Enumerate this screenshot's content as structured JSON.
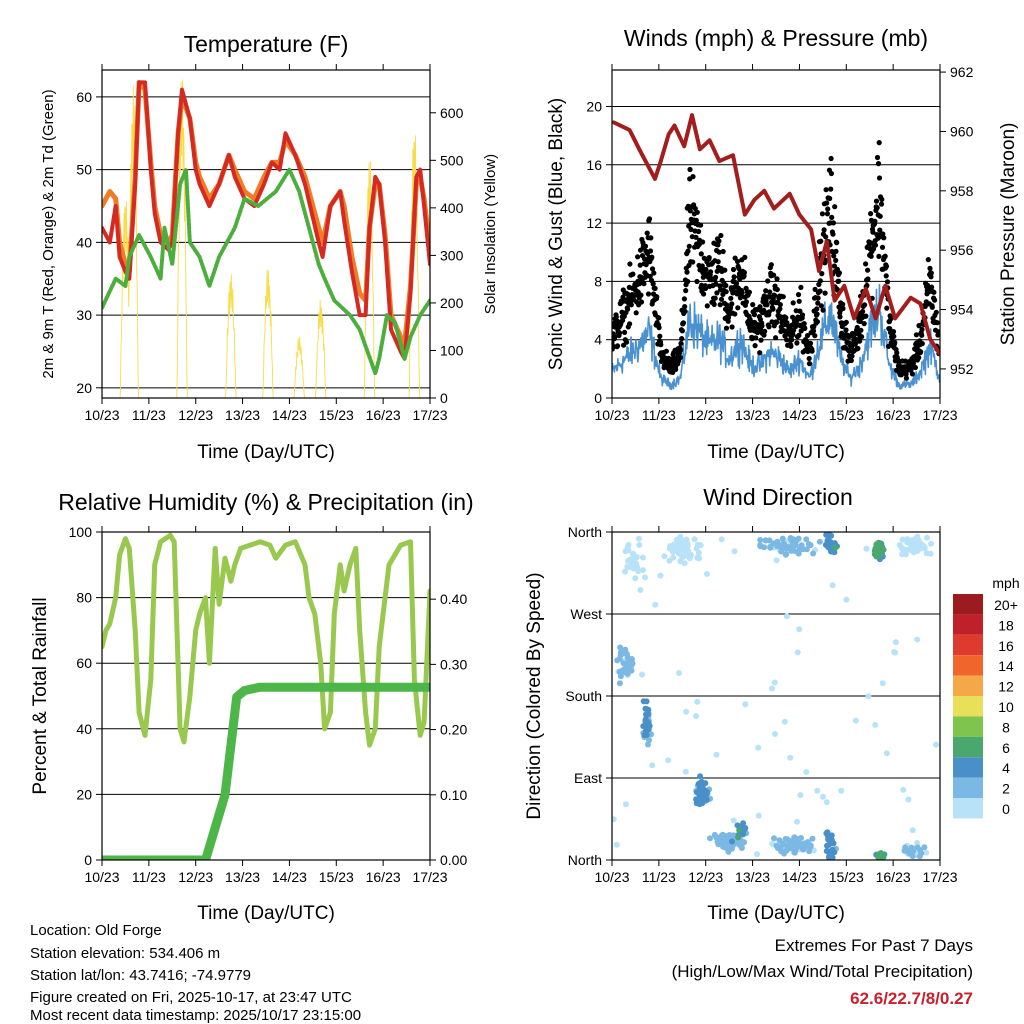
{
  "info": {
    "location": "Location: Old Forge",
    "elevation": "Station elevation: 534.406 m",
    "latlon": "Station lat/lon: 43.7416; -74.9779",
    "created": "Figure created on Fri, 2025-10-17, at 23:47 UTC",
    "timestamp": "Most recent data timestamp: 2025/10/17 23:15:00"
  },
  "extremes": {
    "title": "Extremes For Past 7 Days",
    "subtitle": "(High/Low/Max Wind/Total Precipitation)",
    "values": "62.6/22.7/8/0.27",
    "color": "#c8202c"
  },
  "chart_data": [
    {
      "id": "temperature",
      "type": "line",
      "title": "Temperature (F)",
      "xlabel": "Time (Day/UTC)",
      "ylabel": "2m & 9m T (Red, Orange) & 2m Td (Green)",
      "y2label": "Solar Insolation (Yellow)",
      "x_tick_labels": [
        "10/23",
        "11/23",
        "12/23",
        "13/23",
        "14/23",
        "15/23",
        "16/23",
        "17/23"
      ],
      "xlim_hours": [
        0,
        168
      ],
      "ylim": [
        18.6,
        63.7
      ],
      "yticks": [
        20,
        30,
        40,
        50,
        60
      ],
      "y2lim": [
        0,
        690
      ],
      "y2ticks": [
        0,
        100,
        200,
        300,
        400,
        500,
        600
      ],
      "grid": true,
      "series": [
        {
          "name": "2m T",
          "color": "#d42a22",
          "hours": [
            0,
            4,
            7,
            9,
            12,
            14,
            17,
            19,
            22,
            25,
            27,
            30,
            34,
            36,
            39,
            41,
            45,
            48,
            50,
            55,
            60,
            65,
            68,
            73,
            78,
            83,
            87,
            91,
            94,
            99,
            104,
            111,
            113,
            117,
            122,
            124,
            128,
            132,
            135,
            137,
            140,
            142,
            145,
            148,
            153,
            155,
            158,
            161,
            163,
            165,
            168
          ],
          "values": [
            42,
            40,
            45,
            38,
            36,
            35,
            48,
            62,
            62,
            50,
            44,
            40,
            39,
            40,
            55,
            61,
            57,
            50,
            48,
            45,
            48,
            52,
            49,
            46,
            45,
            48,
            51,
            50,
            55,
            52,
            48,
            40,
            38,
            45,
            47,
            43,
            36,
            30,
            30,
            42,
            49,
            48,
            40,
            28,
            25,
            24,
            33,
            49,
            50,
            45,
            37
          ]
        },
        {
          "name": "9m T",
          "color": "#f07c28",
          "hours": [
            0,
            4,
            7,
            9,
            12,
            14,
            17,
            19,
            22,
            25,
            27,
            30,
            34,
            36,
            39,
            41,
            45,
            48,
            50,
            55,
            60,
            65,
            68,
            73,
            78,
            83,
            87,
            91,
            94,
            99,
            104,
            111,
            113,
            117,
            122,
            124,
            128,
            132,
            135,
            137,
            140,
            142,
            145,
            148,
            153,
            155,
            158,
            161,
            163,
            165,
            168
          ],
          "values": [
            45,
            47,
            46,
            40,
            37,
            36,
            49,
            62,
            61,
            51,
            45,
            41,
            40,
            41,
            55,
            60,
            57,
            51,
            49,
            46,
            48,
            52,
            50,
            47,
            46,
            49,
            51,
            51,
            54,
            52,
            49,
            42,
            40,
            45,
            47,
            45,
            38,
            33,
            32,
            42,
            48,
            48,
            41,
            30,
            27,
            26,
            34,
            48,
            49,
            46,
            39
          ]
        },
        {
          "name": "2m Td",
          "color": "#4cae3c",
          "hours": [
            0,
            7,
            12,
            14,
            19,
            25,
            30,
            32,
            36,
            40,
            43,
            45,
            50,
            55,
            60,
            68,
            73,
            80,
            89,
            96,
            101,
            106,
            111,
            114,
            119,
            127,
            132,
            136,
            140,
            142,
            146,
            150,
            155,
            158,
            163,
            168
          ],
          "values": [
            31,
            35,
            34,
            38,
            41,
            38,
            35,
            42,
            37,
            48,
            50,
            40,
            38,
            34,
            38,
            42,
            46,
            45,
            47,
            50,
            47,
            42,
            37,
            35,
            32,
            30,
            28,
            25,
            22,
            24,
            30,
            29,
            24,
            27,
            30,
            32
          ]
        },
        {
          "name": "Solar Insolation",
          "axis": "y2",
          "color": "#f8dc48",
          "peak_hours": [
            12,
            16,
            41,
            66,
            85,
            101,
            112,
            137,
            160
          ],
          "peak_values": [
            440,
            670,
            690,
            270,
            280,
            130,
            210,
            520,
            590
          ]
        }
      ]
    },
    {
      "id": "winds",
      "type": "scatter+line",
      "title": "Winds (mph) & Pressure (mb)",
      "xlabel": "Time (Day/UTC)",
      "ylabel": "Sonic Wind & Gust (Blue, Black)",
      "y2label": "Station Pressure (Maroon)",
      "x_tick_labels": [
        "10/23",
        "11/23",
        "12/23",
        "13/23",
        "14/23",
        "15/23",
        "16/23",
        "17/23"
      ],
      "xlim_hours": [
        0,
        168
      ],
      "ylim": [
        0,
        22.5
      ],
      "yticks": [
        0,
        4,
        8,
        12,
        16,
        20
      ],
      "y2lim": [
        951.02,
        962.07
      ],
      "y2ticks": [
        952,
        954,
        956,
        958,
        960,
        962
      ],
      "grid": true,
      "gust": {
        "name": "Gust",
        "color": "#000000",
        "hours": [
          0,
          7,
          14,
          19,
          25,
          30,
          35,
          40,
          45,
          50,
          55,
          60,
          66,
          71,
          76,
          81,
          86,
          91,
          96,
          101,
          106,
          112,
          117,
          122,
          127,
          132,
          137,
          142,
          147,
          153,
          158,
          163,
          168
        ],
        "typical_values": [
          4,
          6,
          8,
          10,
          3,
          2,
          3,
          12,
          10,
          8,
          9,
          6,
          9,
          5,
          5,
          7,
          6,
          4,
          6,
          3,
          8,
          13,
          6,
          3,
          5,
          10,
          14,
          5,
          2,
          2,
          4,
          8,
          3
        ]
      },
      "sonic": {
        "name": "Sonic Wind",
        "color": "#4a92cf",
        "ratio_to_gust": 0.45
      },
      "pressure": {
        "name": "Station Pressure",
        "color": "#a31d1d",
        "hours": [
          1,
          9,
          14,
          18,
          22,
          25,
          29,
          32,
          37,
          41,
          45,
          50,
          55,
          62,
          68,
          73,
          78,
          83,
          91,
          96,
          102,
          106,
          110,
          114,
          119,
          124,
          130,
          135,
          140,
          145,
          153,
          158,
          163,
          168
        ],
        "values": [
          960.3,
          960.05,
          959.4,
          958.9,
          958.4,
          959.0,
          959.9,
          960.2,
          959.5,
          960.55,
          959.4,
          959.7,
          959.0,
          959.2,
          957.2,
          957.7,
          958.0,
          957.4,
          957.9,
          957.2,
          956.7,
          955.3,
          956.3,
          954.3,
          954.8,
          953.7,
          954.7,
          953.7,
          954.8,
          953.7,
          954.4,
          954.2,
          953.0,
          952.5
        ]
      }
    },
    {
      "id": "humidity",
      "type": "line",
      "title": "Relative Humidity (%) & Precipitation (in)",
      "xlabel": "Time (Day/UTC)",
      "ylabel": "Percent & Total Rainfall",
      "x_tick_labels": [
        "10/23",
        "11/23",
        "12/23",
        "13/23",
        "14/23",
        "15/23",
        "16/23",
        "17/23"
      ],
      "xlim_hours": [
        0,
        168
      ],
      "ylim": [
        0,
        100
      ],
      "yticks": [
        0,
        20,
        40,
        60,
        80,
        100
      ],
      "y2lim": [
        0,
        0.503
      ],
      "y2ticks": [
        "0.00",
        "0.10",
        "0.20",
        "0.30",
        "0.40"
      ],
      "grid": true,
      "series": [
        {
          "name": "Relative Humidity",
          "color": "#98c94e",
          "hours": [
            0,
            2,
            4,
            7,
            9,
            12,
            14,
            17,
            19,
            22,
            25,
            27,
            30,
            35,
            37,
            40,
            42,
            45,
            48,
            50,
            53,
            55,
            58,
            60,
            63,
            66,
            68,
            71,
            81,
            86,
            89,
            94,
            99,
            104,
            106,
            109,
            112,
            114,
            117,
            119,
            122,
            124,
            127,
            130,
            132,
            135,
            137,
            140,
            142,
            147,
            153,
            158,
            160,
            163,
            165,
            168
          ],
          "values": [
            65,
            70,
            72,
            80,
            93,
            98,
            95,
            70,
            45,
            38,
            55,
            90,
            97,
            99,
            97,
            40,
            36,
            50,
            70,
            75,
            80,
            60,
            95,
            78,
            92,
            85,
            90,
            95,
            97,
            96,
            92,
            96,
            97,
            90,
            80,
            75,
            60,
            40,
            45,
            75,
            90,
            82,
            90,
            95,
            70,
            45,
            35,
            40,
            65,
            90,
            96,
            97,
            55,
            38,
            42,
            82
          ]
        },
        {
          "name": "Total Precipitation",
          "axis": "y2",
          "color": "#4db648",
          "hours": [
            0,
            53,
            55,
            59,
            63,
            65,
            67,
            69,
            73,
            81,
            168
          ],
          "values": [
            0,
            0,
            0.02,
            0.06,
            0.1,
            0.15,
            0.2,
            0.25,
            0.26,
            0.265,
            0.265
          ]
        }
      ]
    },
    {
      "id": "wind_direction",
      "type": "scatter",
      "title": "Wind Direction",
      "xlabel": "Time (Day/UTC)",
      "ylabel": "Direction (Colored By Speed)",
      "x_tick_labels": [
        "10/23",
        "11/23",
        "12/23",
        "13/23",
        "14/23",
        "15/23",
        "16/23",
        "17/23"
      ],
      "xlim_hours": [
        0,
        168
      ],
      "ylim_degrees": [
        0,
        360
      ],
      "yticks": [
        {
          "deg": 0,
          "label": "North"
        },
        {
          "deg": 90,
          "label": "East"
        },
        {
          "deg": 180,
          "label": "South"
        },
        {
          "deg": 270,
          "label": "West"
        },
        {
          "deg": 360,
          "label": "North"
        }
      ],
      "grid": true,
      "legend": {
        "title": "mph",
        "position": "right",
        "labels": [
          "20+",
          "18",
          "16",
          "14",
          "12",
          "10",
          "8",
          "6",
          "4",
          "2",
          "0"
        ],
        "colors": [
          "#9b1b1e",
          "#c0202a",
          "#de3a2d",
          "#f0652b",
          "#f6a848",
          "#e7e058",
          "#7ec44d",
          "#4aa86d",
          "#4a90c8",
          "#7cb8e4",
          "#b8e2f8"
        ]
      },
      "clusters_hour_dir_speed_count": [
        [
          7,
          6,
          215,
          25,
          2.5,
          40
        ],
        [
          11,
          8,
          330,
          30,
          0.5,
          30
        ],
        [
          18,
          3,
          150,
          30,
          4,
          40
        ],
        [
          36,
          12,
          340,
          20,
          0.8,
          60
        ],
        [
          46,
          5,
          75,
          20,
          4.5,
          50
        ],
        [
          60,
          12,
          20,
          15,
          3,
          70
        ],
        [
          66,
          3,
          30,
          12,
          5.5,
          15
        ],
        [
          94,
          15,
          15,
          12,
          2.5,
          80
        ],
        [
          90,
          20,
          345,
          15,
          2.5,
          60
        ],
        [
          112,
          4,
          10,
          30,
          4.5,
          40
        ],
        [
          112,
          4,
          345,
          12,
          5,
          30
        ],
        [
          137,
          4,
          5,
          5,
          6,
          20
        ],
        [
          137,
          4,
          340,
          15,
          6,
          40
        ],
        [
          155,
          10,
          345,
          15,
          1,
          50
        ],
        [
          155,
          10,
          10,
          10,
          2,
          30
        ],
        [
          84,
          84,
          180,
          180,
          1,
          60
        ]
      ]
    }
  ]
}
